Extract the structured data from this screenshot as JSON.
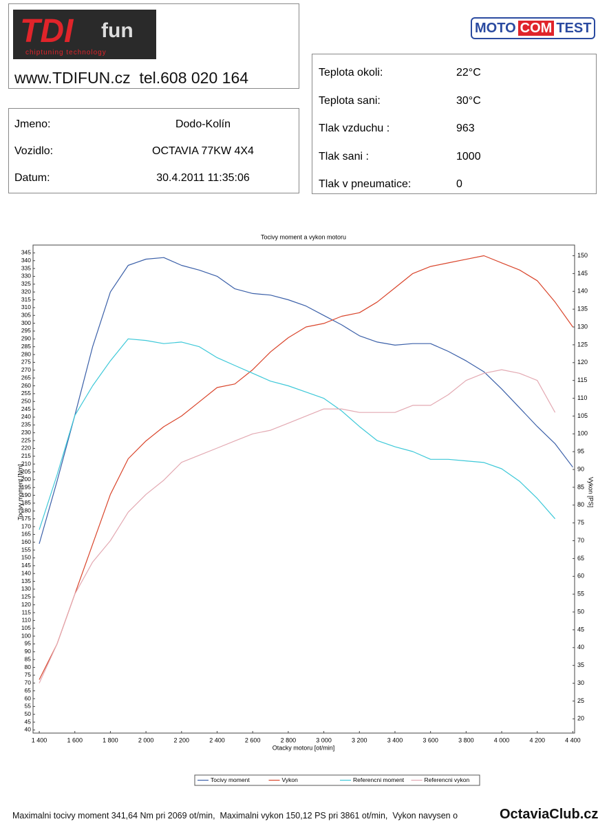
{
  "header": {
    "logo": "TDI",
    "logo_suffix": "fun",
    "logo_tagline": "chiptuning technology",
    "website": "www.TDIFUN.cz  tel.608 020 164",
    "partner_logo": [
      "MOTO",
      "COM",
      "TEST"
    ]
  },
  "customer": {
    "rows": [
      [
        "Jmeno:",
        "Dodo-Kolín"
      ],
      [
        "Vozidlo:",
        "OCTAVIA 77KW 4X4"
      ],
      [
        "Datum:",
        "30.4.2011 11:35:06"
      ]
    ]
  },
  "conditions": {
    "rows": [
      [
        "Teplota okoli:",
        "22°C"
      ],
      [
        "Teplota sani:",
        "30°C"
      ],
      [
        "Tlak vzduchu :",
        "963"
      ],
      [
        "Tlak sani :",
        "1000"
      ],
      [
        "Tlak v pneumatice:",
        "0"
      ]
    ]
  },
  "chart_data": {
    "type": "line",
    "title": "Tocivy moment a vykon motoru",
    "x_label": "Otacky motoru [ot/min]",
    "y_label": "Tocivy moment [Nm]",
    "y2_label": "Vykon [PS]",
    "x": [
      1400,
      1500,
      1600,
      1700,
      1800,
      1900,
      2000,
      2100,
      2200,
      2300,
      2400,
      2500,
      2600,
      2700,
      2800,
      2900,
      3000,
      3100,
      3200,
      3300,
      3400,
      3500,
      3600,
      3700,
      3800,
      3900,
      4000,
      4100,
      4200,
      4300,
      4400
    ],
    "series": [
      {
        "name": "Tocivy moment",
        "color": "#3a5fa8",
        "values": [
          159,
          199,
          241,
          285,
          320,
          337,
          341,
          342,
          337,
          334,
          330,
          322,
          319,
          318,
          315,
          311,
          305,
          299,
          292,
          288,
          286,
          287,
          287,
          282,
          276,
          269,
          258,
          246,
          234,
          223,
          208
        ]
      },
      {
        "name": "Vykon",
        "color": "#d9442a",
        "axis": "y2",
        "values": [
          31,
          41,
          55,
          69,
          83,
          93,
          98,
          102,
          105,
          109,
          113,
          114,
          118,
          123,
          127,
          130,
          131,
          133,
          134,
          137,
          141,
          145,
          147,
          148,
          149,
          150,
          148,
          146,
          143,
          137,
          130
        ]
      },
      {
        "name": "Referencni moment",
        "color": "#3cc8d8",
        "values": [
          168,
          203,
          241,
          260,
          276,
          290,
          289,
          287,
          288,
          285,
          278,
          273,
          268,
          263,
          260,
          256,
          252,
          244,
          234,
          225,
          221,
          218,
          213,
          213,
          212,
          211,
          207,
          199,
          188,
          175,
          null
        ]
      },
      {
        "name": "Referencni vykon",
        "color": "#e3a9b2",
        "axis": "y2",
        "values": [
          30,
          41,
          55,
          64,
          70,
          78,
          83,
          87,
          92,
          94,
          96,
          98,
          100,
          101,
          103,
          105,
          107,
          107,
          106,
          106,
          106,
          108,
          108,
          111,
          115,
          117,
          118,
          117,
          115,
          106,
          null
        ]
      }
    ],
    "xlim": [
      1365,
      4410
    ],
    "xticks": [
      {
        "value": 1400,
        "label": "1 400"
      },
      {
        "value": 1600,
        "label": "1 600"
      },
      {
        "value": 1800,
        "label": "1 800"
      },
      {
        "value": 2000,
        "label": "2 000"
      },
      {
        "value": 2200,
        "label": "2 200"
      },
      {
        "value": 2400,
        "label": "2 400"
      },
      {
        "value": 2600,
        "label": "2 600"
      },
      {
        "value": 2800,
        "label": "2 800"
      },
      {
        "value": 3000,
        "label": "3 000"
      },
      {
        "value": 3200,
        "label": "3 200"
      },
      {
        "value": 3400,
        "label": "3 400"
      },
      {
        "value": 3600,
        "label": "3 600"
      },
      {
        "value": 3800,
        "label": "3 800"
      },
      {
        "value": 4000,
        "label": "4 000"
      },
      {
        "value": 4200,
        "label": "4 200"
      },
      {
        "value": 4400,
        "label": "4 400"
      }
    ],
    "ylim": [
      38,
      350
    ],
    "yticks": [
      40,
      45,
      50,
      55,
      60,
      65,
      70,
      75,
      80,
      85,
      90,
      95,
      100,
      105,
      110,
      115,
      120,
      125,
      130,
      135,
      140,
      145,
      150,
      155,
      160,
      165,
      170,
      175,
      180,
      185,
      190,
      195,
      200,
      205,
      210,
      215,
      220,
      225,
      230,
      235,
      240,
      245,
      250,
      255,
      260,
      265,
      270,
      275,
      280,
      285,
      290,
      295,
      300,
      305,
      310,
      315,
      320,
      325,
      330,
      335,
      340,
      345
    ],
    "y2lim": [
      16,
      153
    ],
    "y2ticks": [
      20,
      25,
      30,
      35,
      40,
      45,
      50,
      55,
      60,
      65,
      70,
      75,
      80,
      85,
      90,
      95,
      100,
      105,
      110,
      115,
      120,
      125,
      130,
      135,
      140,
      145,
      150
    ],
    "grid": false,
    "legend": "bottom"
  },
  "footer": {
    "summary": "Maximalni tocivy moment 341,64 Nm pri 2069 ot/min,  Maximalni vykon 150,12 PS pri 3861 ot/min,  Vykon navysen o",
    "watermark": "OctaviaClub.cz"
  }
}
